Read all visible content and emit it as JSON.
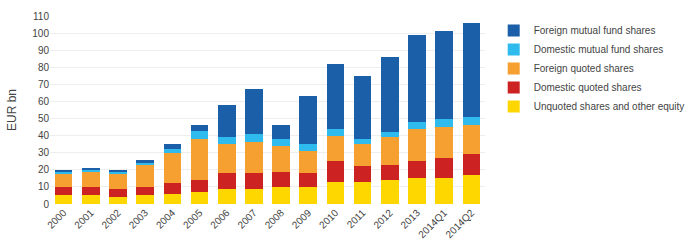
{
  "chart_data": {
    "type": "bar",
    "stacked": true,
    "categories": [
      "2000",
      "2001",
      "2002",
      "2003",
      "2004",
      "2005",
      "2006",
      "2007",
      "2008",
      "2009",
      "2010",
      "2011",
      "2012",
      "2013",
      "2014Q1",
      "2014Q2"
    ],
    "series": [
      {
        "name": "Unquoted shares and other equity",
        "color": "#FFD700",
        "values": [
          5,
          5,
          4,
          5,
          6,
          7,
          9,
          9,
          10,
          10,
          13,
          13,
          14,
          15,
          15,
          17
        ]
      },
      {
        "name": "Domestic quoted shares",
        "color": "#CC2222",
        "values": [
          5,
          5,
          5,
          5,
          6,
          7,
          9,
          9,
          9,
          8,
          12,
          9,
          9,
          10,
          12,
          12
        ]
      },
      {
        "name": "Foreign quoted shares",
        "color": "#F5A030",
        "values": [
          8,
          9,
          9,
          13,
          18,
          24,
          17,
          18,
          15,
          13,
          15,
          13,
          16,
          19,
          18,
          17
        ]
      },
      {
        "name": "Domestic mutual fund shares",
        "color": "#30BBEE",
        "values": [
          1,
          1,
          1,
          1,
          2,
          5,
          4,
          5,
          4,
          4,
          4,
          3,
          3,
          4,
          5,
          5
        ]
      },
      {
        "name": "Foreign mutual fund shares",
        "color": "#1A5FA8",
        "values": [
          1,
          1,
          1,
          2,
          3,
          3,
          19,
          26,
          8,
          28,
          38,
          37,
          44,
          51,
          51,
          55
        ]
      }
    ],
    "ylabel": "EUR bn",
    "ylim": [
      0,
      110
    ],
    "yticks": [
      0,
      10,
      20,
      30,
      40,
      50,
      60,
      70,
      80,
      90,
      100,
      110
    ],
    "grid": true,
    "legend": "right"
  }
}
